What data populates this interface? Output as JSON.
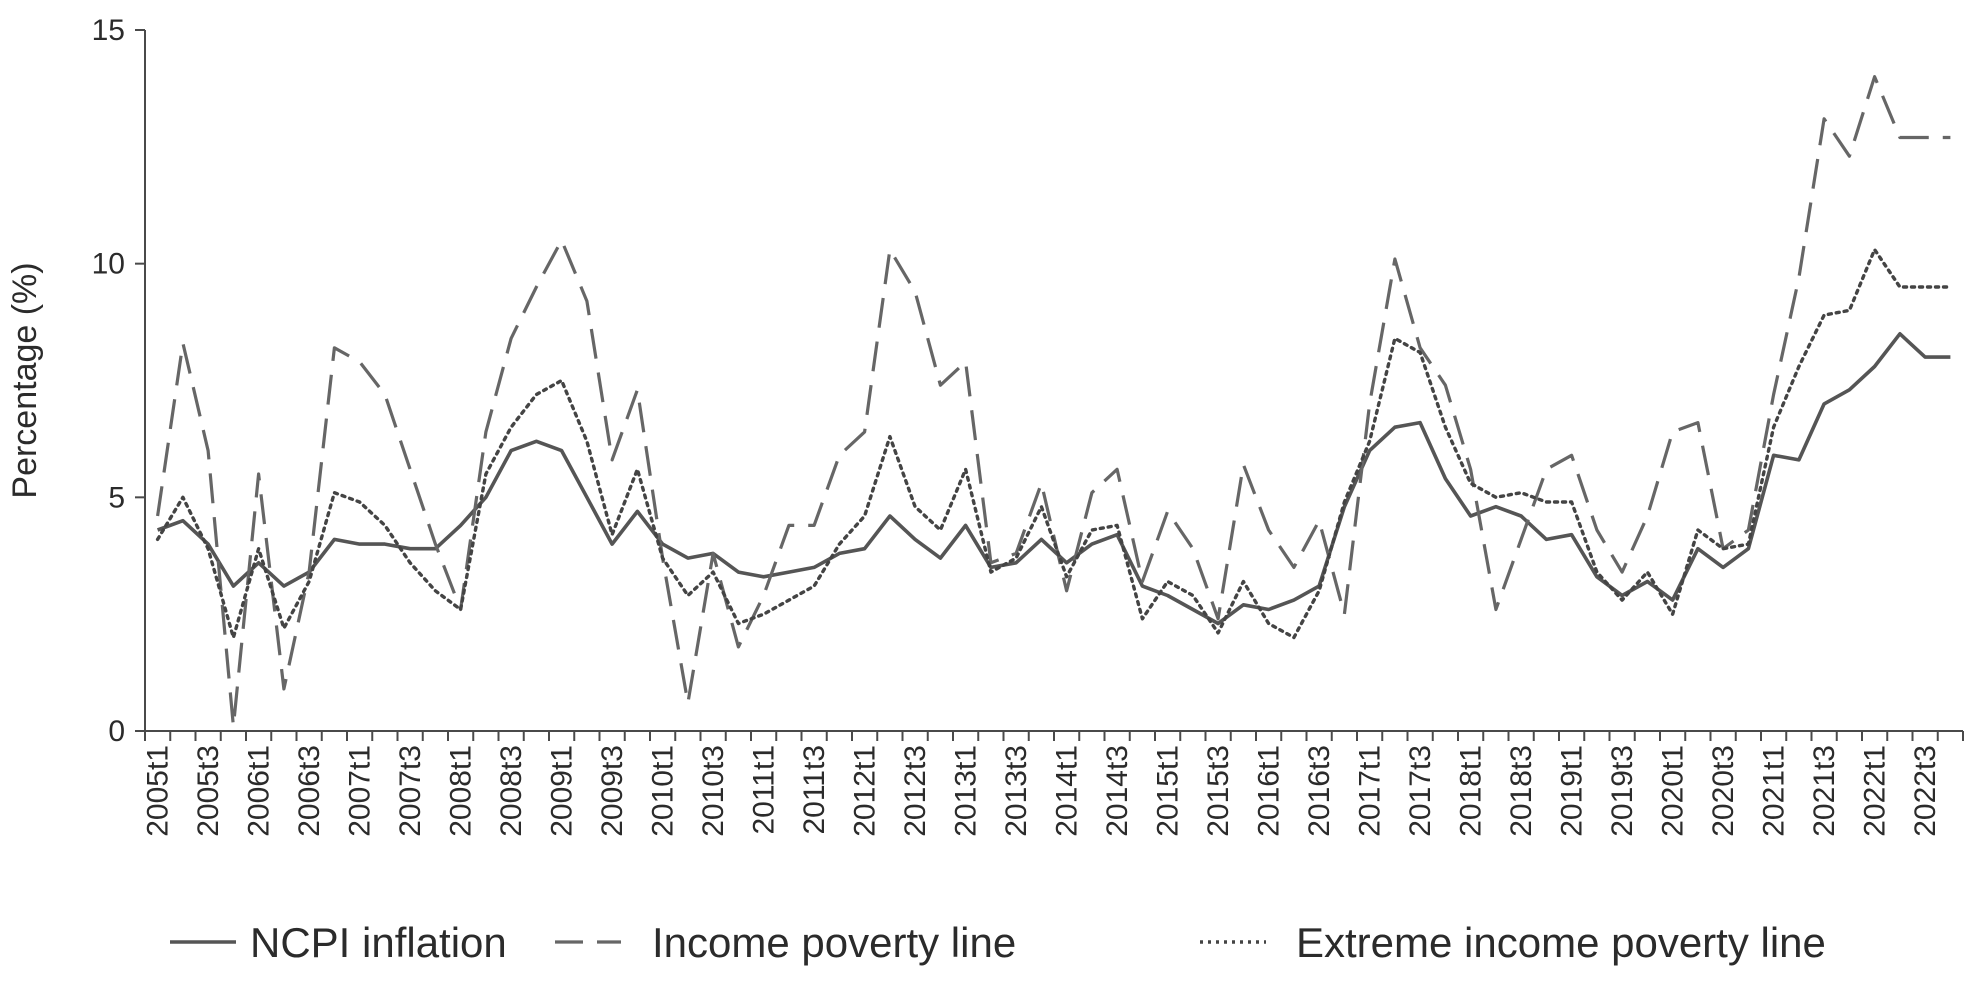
{
  "chart_data": {
    "type": "line",
    "title": "",
    "xlabel": "",
    "ylabel": "Percentage (%)",
    "ylim": [
      0,
      15
    ],
    "yticks": [
      0,
      5,
      10,
      15
    ],
    "grid": false,
    "legend_position": "bottom",
    "x_tick_labels": [
      "2005t1",
      "2005t3",
      "2006t1",
      "2006t3",
      "2007t1",
      "2007t3",
      "2008t1",
      "2008t3",
      "2009t1",
      "2009t3",
      "2010t1",
      "2010t3",
      "2011t1",
      "2011t3",
      "2012t1",
      "2012t3",
      "2013t1",
      "2013t3",
      "2014t1",
      "2014t3",
      "2015t1",
      "2015t3",
      "2016t1",
      "2016t3",
      "2017t1",
      "2017t3",
      "2018t1",
      "2018t3",
      "2019t1",
      "2019t3",
      "2020t1",
      "2020t3",
      "2021t1",
      "2021t3",
      "2022t1",
      "2022t3"
    ],
    "x": [
      "2005t1",
      "2005t2",
      "2005t3",
      "2005t4",
      "2006t1",
      "2006t2",
      "2006t3",
      "2006t4",
      "2007t1",
      "2007t2",
      "2007t3",
      "2007t4",
      "2008t1",
      "2008t2",
      "2008t3",
      "2008t4",
      "2009t1",
      "2009t2",
      "2009t3",
      "2009t4",
      "2010t1",
      "2010t2",
      "2010t3",
      "2010t4",
      "2011t1",
      "2011t2",
      "2011t3",
      "2011t4",
      "2012t1",
      "2012t2",
      "2012t3",
      "2012t4",
      "2013t1",
      "2013t2",
      "2013t3",
      "2013t4",
      "2014t1",
      "2014t2",
      "2014t3",
      "2014t4",
      "2015t1",
      "2015t2",
      "2015t3",
      "2015t4",
      "2016t1",
      "2016t2",
      "2016t3",
      "2016t4",
      "2017t1",
      "2017t2",
      "2017t3",
      "2017t4",
      "2018t1",
      "2018t2",
      "2018t3",
      "2018t4",
      "2019t1",
      "2019t2",
      "2019t3",
      "2019t4",
      "2020t1",
      "2020t2",
      "2020t3",
      "2020t4",
      "2021t1",
      "2021t2",
      "2021t3",
      "2021t4",
      "2022t1",
      "2022t2",
      "2022t3",
      "2022t4"
    ],
    "series": [
      {
        "name": "NCPI inflation",
        "style": "solid",
        "color": "#555555",
        "values": [
          4.3,
          4.5,
          4.0,
          3.1,
          3.6,
          3.1,
          3.4,
          4.1,
          4.0,
          4.0,
          3.9,
          3.9,
          4.4,
          5.0,
          6.0,
          6.2,
          6.0,
          5.0,
          4.0,
          4.7,
          4.0,
          3.7,
          3.8,
          3.4,
          3.3,
          3.4,
          3.5,
          3.8,
          3.9,
          4.6,
          4.1,
          3.7,
          4.4,
          3.5,
          3.6,
          4.1,
          3.6,
          4.0,
          4.2,
          3.1,
          2.9,
          2.6,
          2.3,
          2.7,
          2.6,
          2.8,
          3.1,
          4.8,
          6.0,
          6.5,
          6.6,
          5.4,
          4.6,
          4.8,
          4.6,
          4.1,
          4.2,
          3.3,
          2.9,
          3.2,
          2.8,
          3.9,
          3.5,
          3.9,
          5.9,
          5.8,
          7.0,
          7.3,
          7.8,
          8.5,
          8.0,
          8.0
        ]
      },
      {
        "name": "Income poverty line",
        "style": "dashed",
        "color": "#666666",
        "values": [
          4.6,
          8.3,
          6.0,
          0.1,
          5.5,
          0.9,
          3.4,
          8.2,
          7.9,
          7.2,
          5.6,
          4.0,
          2.6,
          6.4,
          8.4,
          9.5,
          10.5,
          9.2,
          5.8,
          7.3,
          3.7,
          0.6,
          3.8,
          1.8,
          2.9,
          4.4,
          4.4,
          5.9,
          6.4,
          10.3,
          9.4,
          7.4,
          7.9,
          3.6,
          3.8,
          5.3,
          3.0,
          5.1,
          5.6,
          3.2,
          4.7,
          3.9,
          2.4,
          5.7,
          4.3,
          3.5,
          4.5,
          2.5,
          7.0,
          10.1,
          8.2,
          7.4,
          5.6,
          2.6,
          4.1,
          5.6,
          5.9,
          4.3,
          3.4,
          4.6,
          6.4,
          6.6,
          3.9,
          4.3,
          7.2,
          9.7,
          13.1,
          12.3,
          14.0,
          12.7,
          12.7,
          12.7
        ]
      },
      {
        "name": "Extreme income poverty line",
        "style": "dotted",
        "color": "#444444",
        "values": [
          4.1,
          5.0,
          3.9,
          2.0,
          3.9,
          2.2,
          3.2,
          5.1,
          4.9,
          4.4,
          3.6,
          3.0,
          2.6,
          5.5,
          6.5,
          7.2,
          7.5,
          6.2,
          4.2,
          5.6,
          3.7,
          2.9,
          3.4,
          2.3,
          2.5,
          2.8,
          3.1,
          4.0,
          4.6,
          6.3,
          4.8,
          4.3,
          5.6,
          3.4,
          3.7,
          4.8,
          3.3,
          4.3,
          4.4,
          2.4,
          3.2,
          2.9,
          2.1,
          3.2,
          2.3,
          2.0,
          3.0,
          4.9,
          6.2,
          8.4,
          8.1,
          6.5,
          5.3,
          5.0,
          5.1,
          4.9,
          4.9,
          3.4,
          2.8,
          3.4,
          2.5,
          4.3,
          3.9,
          4.0,
          6.5,
          7.8,
          8.9,
          9.0,
          10.3,
          9.5,
          9.5,
          9.5
        ]
      }
    ]
  }
}
